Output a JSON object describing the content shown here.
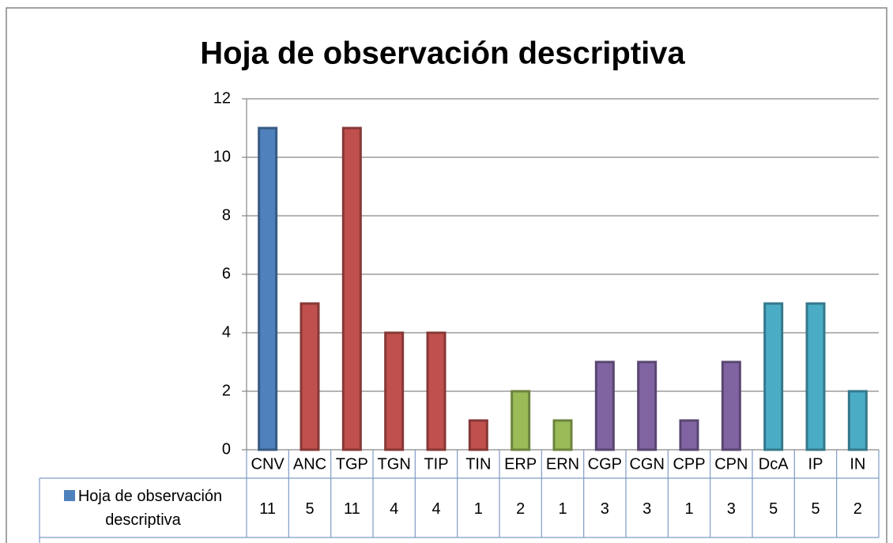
{
  "chart_data": {
    "type": "bar",
    "title": "Hoja de observación descriptiva",
    "categories": [
      "CNV",
      "ANC",
      "TGP",
      "TGN",
      "TIP",
      "TIN",
      "ERP",
      "ERN",
      "CGP",
      "CGN",
      "CPP",
      "CPN",
      "DcA",
      "IP",
      "IN"
    ],
    "series": [
      {
        "name": "Hoja de observación descriptiva",
        "color": "#4f81bd",
        "colors": [
          "#4f81bd",
          "#c0504d",
          "#c0504d",
          "#c0504d",
          "#c0504d",
          "#c0504d",
          "#9bbb59",
          "#9bbb59",
          "#8064a2",
          "#8064a2",
          "#8064a2",
          "#8064a2",
          "#4bacc6",
          "#4bacc6",
          "#4bacc6"
        ],
        "values": [
          11,
          5,
          11,
          4,
          4,
          1,
          2,
          1,
          3,
          3,
          1,
          3,
          5,
          5,
          2
        ]
      }
    ],
    "ylim": [
      0,
      12
    ],
    "yticks": [
      0,
      2,
      4,
      6,
      8,
      10,
      12
    ],
    "grid": true
  }
}
